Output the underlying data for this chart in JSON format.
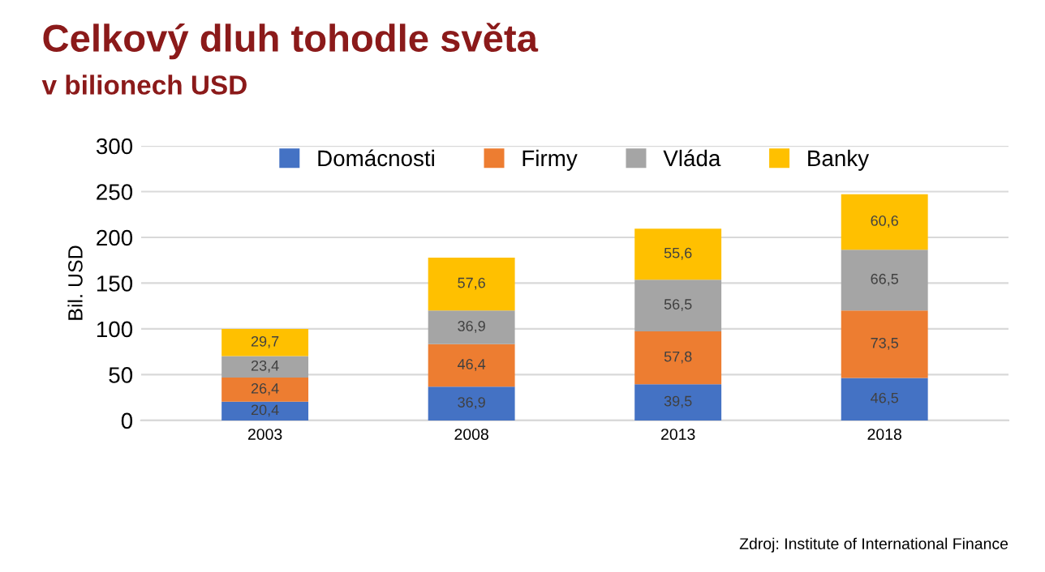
{
  "chart_data": {
    "type": "bar",
    "title": "Celkový dluh tohodle světa",
    "subtitle": "v bilionech USD",
    "ylabel": "Bil. USD",
    "categories": [
      "2003",
      "2008",
      "2013",
      "2018"
    ],
    "series": [
      {
        "name": "Domácnosti",
        "color": "#4472c4",
        "values": [
          20.4,
          36.9,
          39.5,
          46.5
        ],
        "value_labels": [
          "20,4",
          "36,9",
          "39,5",
          "46,5"
        ]
      },
      {
        "name": "Firmy",
        "color": "#ed7d31",
        "values": [
          26.4,
          46.4,
          57.8,
          73.5
        ],
        "value_labels": [
          "26,4",
          "46,4",
          "57,8",
          "73,5"
        ]
      },
      {
        "name": "Vláda",
        "color": "#a5a5a5",
        "values": [
          23.4,
          36.9,
          56.5,
          66.5
        ],
        "value_labels": [
          "23,4",
          "36,9",
          "56,5",
          "66,5"
        ]
      },
      {
        "name": "Banky",
        "color": "#ffc000",
        "values": [
          29.7,
          57.6,
          55.6,
          60.6
        ],
        "value_labels": [
          "29,7",
          "57,6",
          "55,6",
          "60,6"
        ]
      }
    ],
    "stacked": true,
    "ylim": [
      0,
      300
    ],
    "yticks": [
      0,
      50,
      100,
      150,
      200,
      250,
      300
    ],
    "grid": "y",
    "legend": "top",
    "annotations": [
      "Zdroj: Institute of International Finance"
    ]
  }
}
